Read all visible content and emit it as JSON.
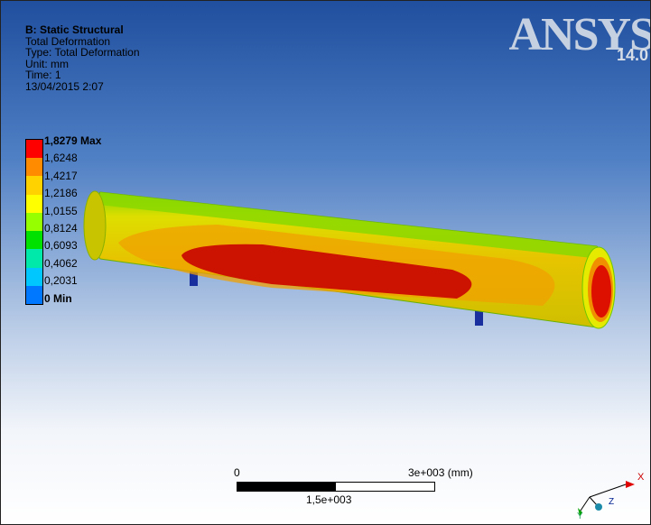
{
  "info": {
    "title": "B: Static Structural",
    "lines": [
      "Total Deformation",
      "Type: Total Deformation",
      "Unit: mm",
      "Time: 1",
      "13/04/2015 2:07"
    ]
  },
  "legend": {
    "labels": [
      "1,8279 Max",
      "1,6248",
      "1,4217",
      "1,2186",
      "1,0155",
      "0,8124",
      "0,6093",
      "0,4062",
      "0,2031",
      "0 Min"
    ],
    "colors": [
      "#ff0000",
      "#ff8c00",
      "#ffd200",
      "#ffff00",
      "#96ff00",
      "#00e100",
      "#00e8aa",
      "#00c8ff",
      "#0078ff",
      "#0000ff"
    ]
  },
  "logo": {
    "name": "ANSYS",
    "version": "14.0"
  },
  "scale": {
    "zero": "0",
    "max": "3e+003 (mm)",
    "mid": "1,5e+003"
  },
  "triad": {
    "x_label": "X",
    "y_label": "Y",
    "z_label": "Z"
  }
}
